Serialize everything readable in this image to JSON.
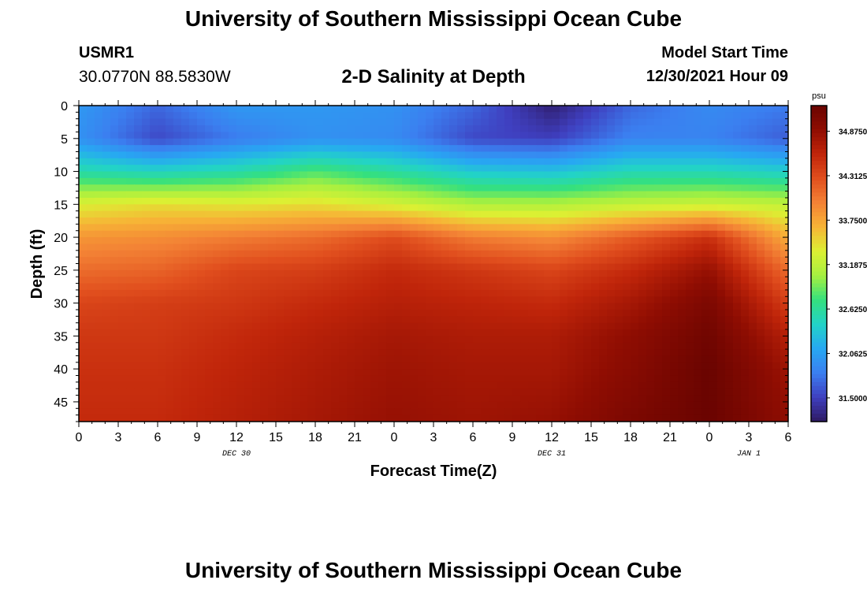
{
  "header": {
    "title": "University of Southern Mississippi Ocean Cube",
    "station": "USMR1",
    "coordinates": "30.0770N  88.5830W",
    "subtitle": "2-D Salinity at Depth",
    "model_start_label": "Model Start Time",
    "model_start_value": "12/30/2021 Hour 09",
    "footer_title": "University of Southern Mississippi Ocean Cube"
  },
  "colors": {
    "scale": [
      "#2e1a63",
      "#3f3fbf",
      "#3b7ff0",
      "#27a8f2",
      "#22d3c7",
      "#35e07e",
      "#a6f040",
      "#dcf033",
      "#f7b436",
      "#f38235",
      "#e14f1e",
      "#c0250a",
      "#8f0d02",
      "#6a0401"
    ]
  },
  "chart_data": {
    "type": "heatmap",
    "xlabel": "Forecast Time(Z)",
    "ylabel": "Depth (ft)",
    "x_ticks": [
      "0",
      "3",
      "6",
      "9",
      "12",
      "15",
      "18",
      "21",
      "0",
      "3",
      "6",
      "9",
      "12",
      "15",
      "18",
      "21",
      "0",
      "3",
      "6"
    ],
    "x_range_hours": [
      0,
      54
    ],
    "date_labels": [
      {
        "label": "DEC 30",
        "hour": 12
      },
      {
        "label": "DEC 31",
        "hour": 36
      },
      {
        "label": "JAN 1",
        "hour": 51
      }
    ],
    "y_ticks": [
      0,
      5,
      10,
      15,
      20,
      25,
      30,
      35,
      40,
      45
    ],
    "y_range": [
      0,
      48
    ],
    "colorbar": {
      "unit": "psu",
      "labels": [
        "34.8750",
        "34.3125",
        "33.7500",
        "33.1875",
        "32.6250",
        "32.0625",
        "31.5000"
      ],
      "range": [
        31.2,
        35.2
      ]
    },
    "salinity_grid": {
      "hours": [
        0,
        6,
        12,
        18,
        24,
        30,
        36,
        42,
        48,
        54
      ],
      "depths": [
        0,
        5,
        10,
        15,
        20,
        25,
        30,
        35,
        40,
        48
      ],
      "values": [
        [
          32.0,
          31.7,
          32.0,
          32.0,
          31.95,
          31.7,
          31.25,
          31.7,
          31.9,
          31.8
        ],
        [
          31.95,
          31.55,
          31.8,
          31.95,
          31.9,
          31.55,
          31.5,
          31.85,
          31.85,
          31.65
        ],
        [
          32.55,
          32.45,
          32.55,
          32.8,
          32.6,
          32.35,
          32.3,
          32.5,
          32.5,
          32.4
        ],
        [
          33.35,
          33.45,
          33.4,
          33.45,
          33.3,
          33.1,
          33.1,
          33.2,
          33.25,
          33.2
        ],
        [
          33.85,
          33.9,
          34.0,
          34.1,
          34.3,
          34.0,
          33.9,
          34.2,
          34.5,
          33.7
        ],
        [
          34.1,
          34.15,
          34.35,
          34.4,
          34.55,
          34.45,
          34.35,
          34.55,
          34.85,
          34.1
        ],
        [
          34.35,
          34.4,
          34.45,
          34.55,
          34.65,
          34.6,
          34.55,
          34.75,
          35.05,
          34.4
        ],
        [
          34.45,
          34.45,
          34.55,
          34.65,
          34.75,
          34.7,
          34.7,
          34.9,
          35.15,
          34.65
        ],
        [
          34.5,
          34.5,
          34.6,
          34.7,
          34.8,
          34.75,
          34.75,
          34.95,
          35.2,
          34.8
        ],
        [
          34.55,
          34.55,
          34.65,
          34.75,
          34.85,
          34.8,
          34.85,
          35.05,
          35.2,
          34.9
        ]
      ]
    }
  }
}
